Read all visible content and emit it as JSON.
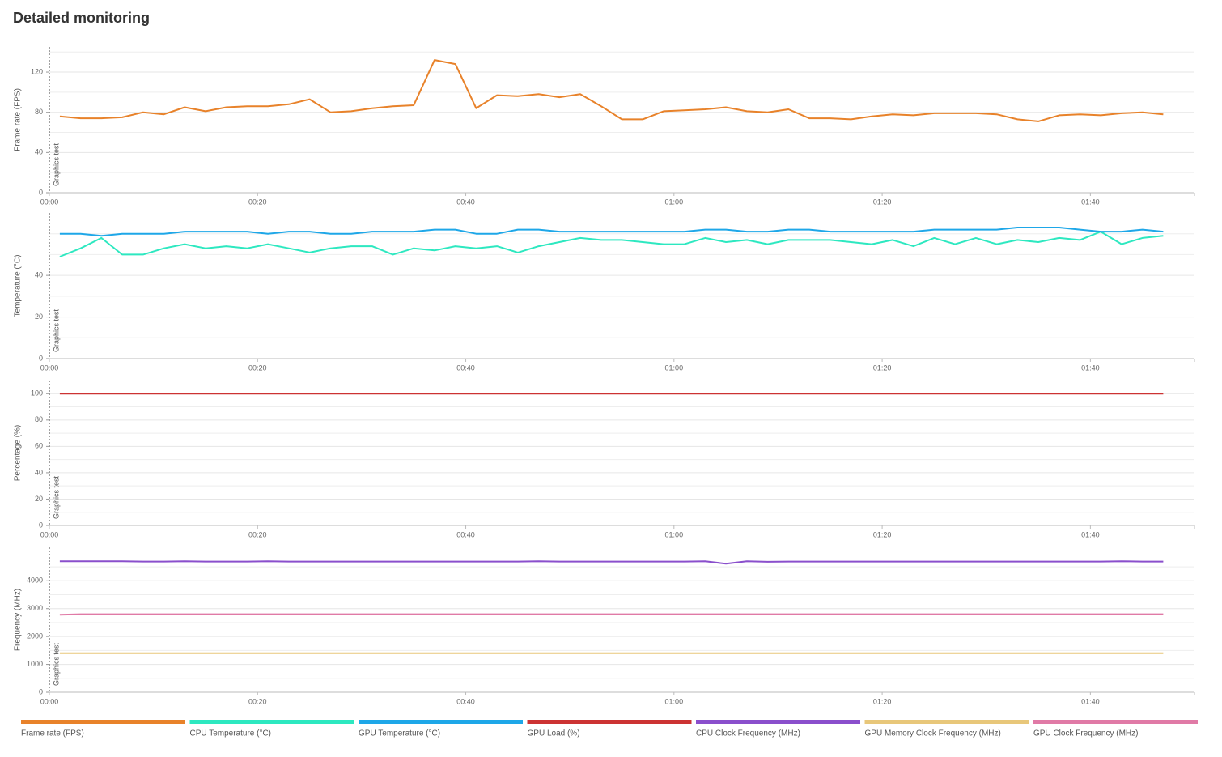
{
  "title": "Detailed monitoring",
  "chart_data": [
    {
      "type": "line",
      "ylabel": "Frame rate (FPS)",
      "annotation": "Graphics test",
      "x": [
        1,
        3,
        5,
        7,
        9,
        11,
        13,
        15,
        17,
        19,
        21,
        23,
        25,
        27,
        29,
        31,
        33,
        35,
        37,
        39,
        41,
        43,
        45,
        47,
        49,
        51,
        53,
        55,
        57,
        59,
        61,
        63,
        65,
        67,
        69,
        71,
        73,
        75,
        77,
        79,
        81,
        83,
        85,
        87,
        89,
        91,
        93,
        95,
        97,
        99,
        101,
        103,
        105,
        107
      ],
      "xlim": [
        0,
        110
      ],
      "xticks": [
        {
          "value": 0,
          "label": "00:00"
        },
        {
          "value": 20,
          "label": "00:20"
        },
        {
          "value": 40,
          "label": "00:40"
        },
        {
          "value": 60,
          "label": "01:00"
        },
        {
          "value": 80,
          "label": "01:20"
        },
        {
          "value": 100,
          "label": "01:40"
        }
      ],
      "ylim": [
        0,
        145
      ],
      "yticks": [
        0,
        40,
        80,
        120
      ],
      "minor_yticks": [
        20,
        60,
        100,
        140
      ],
      "grid": true,
      "series": [
        {
          "name": "Frame rate (FPS)",
          "color": "#e8822a",
          "values": [
            76,
            74,
            74,
            75,
            80,
            78,
            85,
            81,
            85,
            86,
            86,
            88,
            93,
            80,
            81,
            84,
            86,
            87,
            132,
            128,
            84,
            97,
            96,
            98,
            95,
            98,
            86,
            73,
            73,
            81,
            82,
            83,
            85,
            81,
            80,
            83,
            74,
            74,
            73,
            76,
            78,
            77,
            79,
            79,
            79,
            78,
            73,
            71,
            77,
            78,
            77,
            79,
            80,
            78
          ]
        }
      ]
    },
    {
      "type": "line",
      "ylabel": "Temperature (°C)",
      "annotation": "Graphics test",
      "x": [
        1,
        3,
        5,
        7,
        9,
        11,
        13,
        15,
        17,
        19,
        21,
        23,
        25,
        27,
        29,
        31,
        33,
        35,
        37,
        39,
        41,
        43,
        45,
        47,
        49,
        51,
        53,
        55,
        57,
        59,
        61,
        63,
        65,
        67,
        69,
        71,
        73,
        75,
        77,
        79,
        81,
        83,
        85,
        87,
        89,
        91,
        93,
        95,
        97,
        99,
        101,
        103,
        105,
        107
      ],
      "xlim": [
        0,
        110
      ],
      "xticks": [
        {
          "value": 0,
          "label": "00:00"
        },
        {
          "value": 20,
          "label": "00:20"
        },
        {
          "value": 40,
          "label": "00:40"
        },
        {
          "value": 60,
          "label": "01:00"
        },
        {
          "value": 80,
          "label": "01:20"
        },
        {
          "value": 100,
          "label": "01:40"
        }
      ],
      "ylim": [
        0,
        70
      ],
      "yticks": [
        0,
        20,
        40
      ],
      "minor_yticks": [
        10,
        30,
        50,
        60
      ],
      "grid": true,
      "series": [
        {
          "name": "CPU Temperature (°C)",
          "color": "#2de8c0",
          "values": [
            49,
            53,
            58,
            50,
            50,
            53,
            55,
            53,
            54,
            53,
            55,
            53,
            51,
            53,
            54,
            54,
            50,
            53,
            52,
            54,
            53,
            54,
            51,
            54,
            56,
            58,
            57,
            57,
            56,
            55,
            55,
            58,
            56,
            57,
            55,
            57,
            57,
            57,
            56,
            55,
            57,
            54,
            58,
            55,
            58,
            55,
            57,
            56,
            58,
            57,
            61,
            55,
            58,
            59
          ]
        },
        {
          "name": "GPU Temperature (°C)",
          "color": "#1ea7e8",
          "values": [
            60,
            60,
            59,
            60,
            60,
            60,
            61,
            61,
            61,
            61,
            60,
            61,
            61,
            60,
            60,
            61,
            61,
            61,
            62,
            62,
            60,
            60,
            62,
            62,
            61,
            61,
            61,
            61,
            61,
            61,
            61,
            62,
            62,
            61,
            61,
            62,
            62,
            61,
            61,
            61,
            61,
            61,
            62,
            62,
            62,
            62,
            63,
            63,
            63,
            62,
            61,
            61,
            62,
            61
          ]
        }
      ]
    },
    {
      "type": "line",
      "ylabel": "Percentage (%)",
      "annotation": "Graphics test",
      "x": [
        1,
        3,
        5,
        7,
        9,
        11,
        13,
        15,
        17,
        19,
        21,
        23,
        25,
        27,
        29,
        31,
        33,
        35,
        37,
        39,
        41,
        43,
        45,
        47,
        49,
        51,
        53,
        55,
        57,
        59,
        61,
        63,
        65,
        67,
        69,
        71,
        73,
        75,
        77,
        79,
        81,
        83,
        85,
        87,
        89,
        91,
        93,
        95,
        97,
        99,
        101,
        103,
        105,
        107
      ],
      "xlim": [
        0,
        110
      ],
      "xticks": [
        {
          "value": 0,
          "label": "00:00"
        },
        {
          "value": 20,
          "label": "00:20"
        },
        {
          "value": 40,
          "label": "00:40"
        },
        {
          "value": 60,
          "label": "01:00"
        },
        {
          "value": 80,
          "label": "01:20"
        },
        {
          "value": 100,
          "label": "01:40"
        }
      ],
      "ylim": [
        0,
        110
      ],
      "yticks": [
        0,
        20,
        40,
        60,
        80,
        100
      ],
      "minor_yticks": [
        10,
        30,
        50,
        70,
        90
      ],
      "grid": true,
      "series": [
        {
          "name": "GPU Load (%)",
          "color": "#cc3333",
          "values": [
            100,
            100,
            100,
            100,
            100,
            100,
            100,
            100,
            100,
            100,
            100,
            100,
            100,
            100,
            100,
            100,
            100,
            100,
            100,
            100,
            100,
            100,
            100,
            100,
            100,
            100,
            100,
            100,
            100,
            100,
            100,
            100,
            100,
            100,
            100,
            100,
            100,
            100,
            100,
            100,
            100,
            100,
            100,
            100,
            100,
            100,
            100,
            100,
            100,
            100,
            100,
            100,
            100,
            100
          ]
        }
      ]
    },
    {
      "type": "line",
      "ylabel": "Frequency (MHz)",
      "annotation": "Graphics test",
      "x": [
        1,
        3,
        5,
        7,
        9,
        11,
        13,
        15,
        17,
        19,
        21,
        23,
        25,
        27,
        29,
        31,
        33,
        35,
        37,
        39,
        41,
        43,
        45,
        47,
        49,
        51,
        53,
        55,
        57,
        59,
        61,
        63,
        65,
        67,
        69,
        71,
        73,
        75,
        77,
        79,
        81,
        83,
        85,
        87,
        89,
        91,
        93,
        95,
        97,
        99,
        101,
        103,
        105,
        107
      ],
      "xlim": [
        0,
        110
      ],
      "xticks": [
        {
          "value": 0,
          "label": "00:00"
        },
        {
          "value": 20,
          "label": "00:20"
        },
        {
          "value": 40,
          "label": "00:40"
        },
        {
          "value": 60,
          "label": "01:00"
        },
        {
          "value": 80,
          "label": "01:20"
        },
        {
          "value": 100,
          "label": "01:40"
        }
      ],
      "ylim": [
        0,
        5200
      ],
      "yticks": [
        0,
        1000,
        2000,
        3000,
        4000
      ],
      "minor_yticks": [
        500,
        1500,
        2500,
        3500,
        4500
      ],
      "grid": true,
      "series": [
        {
          "name": "CPU Clock Frequency (MHz)",
          "color": "#8a4fcc",
          "values": [
            4700,
            4700,
            4700,
            4700,
            4690,
            4690,
            4700,
            4690,
            4690,
            4690,
            4700,
            4690,
            4690,
            4690,
            4690,
            4690,
            4690,
            4690,
            4690,
            4690,
            4690,
            4690,
            4690,
            4700,
            4690,
            4690,
            4690,
            4690,
            4690,
            4690,
            4690,
            4700,
            4610,
            4700,
            4680,
            4690,
            4690,
            4690,
            4690,
            4690,
            4690,
            4690,
            4690,
            4690,
            4690,
            4690,
            4690,
            4690,
            4690,
            4690,
            4690,
            4700,
            4690,
            4690
          ]
        },
        {
          "name": "GPU Memory Clock Frequency (MHz)",
          "color": "#e8c77a",
          "values": [
            1400,
            1400,
            1400,
            1400,
            1400,
            1400,
            1400,
            1400,
            1400,
            1400,
            1400,
            1400,
            1400,
            1400,
            1400,
            1400,
            1400,
            1400,
            1400,
            1400,
            1400,
            1400,
            1400,
            1400,
            1400,
            1400,
            1400,
            1400,
            1400,
            1400,
            1400,
            1400,
            1400,
            1400,
            1400,
            1400,
            1400,
            1400,
            1400,
            1400,
            1400,
            1400,
            1400,
            1400,
            1400,
            1400,
            1400,
            1400,
            1400,
            1400,
            1400,
            1400,
            1400,
            1400
          ]
        },
        {
          "name": "GPU Clock Frequency (MHz)",
          "color": "#e07aa6",
          "values": [
            2780,
            2800,
            2800,
            2800,
            2800,
            2800,
            2800,
            2800,
            2800,
            2800,
            2800,
            2800,
            2800,
            2800,
            2800,
            2800,
            2800,
            2800,
            2800,
            2800,
            2800,
            2800,
            2800,
            2800,
            2800,
            2800,
            2800,
            2800,
            2800,
            2800,
            2800,
            2800,
            2800,
            2800,
            2800,
            2800,
            2800,
            2800,
            2800,
            2800,
            2800,
            2800,
            2800,
            2800,
            2800,
            2800,
            2800,
            2800,
            2800,
            2800,
            2800,
            2800,
            2800,
            2800
          ]
        }
      ]
    }
  ]
}
